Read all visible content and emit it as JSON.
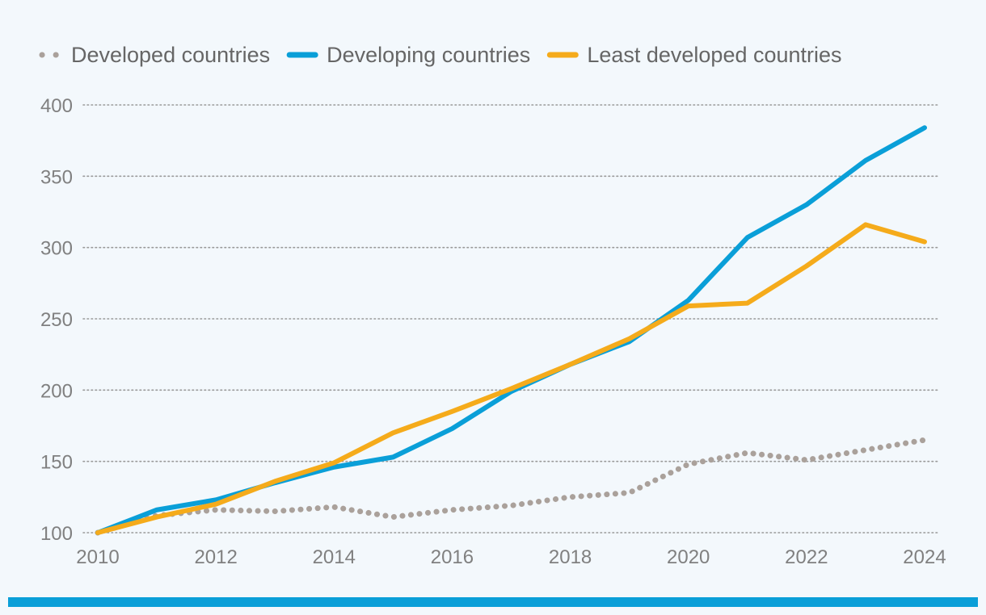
{
  "chart_data": {
    "type": "line",
    "title": "",
    "xlabel": "",
    "ylabel": "",
    "x": [
      2010,
      2011,
      2012,
      2013,
      2014,
      2015,
      2016,
      2017,
      2018,
      2019,
      2020,
      2021,
      2022,
      2023,
      2024
    ],
    "xticks": [
      2010,
      2012,
      2014,
      2016,
      2018,
      2020,
      2022,
      2024
    ],
    "xtick_labels": [
      "2010",
      "2012",
      "2014",
      "2016",
      "2018",
      "2020",
      "2022",
      "2024"
    ],
    "yticks": [
      100,
      150,
      200,
      250,
      300,
      350,
      400
    ],
    "ytick_labels": [
      "100",
      "150",
      "200",
      "250",
      "300",
      "350",
      "400"
    ],
    "xlim": [
      2010,
      2024
    ],
    "ylim": [
      100,
      400
    ],
    "grid": "horizontal dotted",
    "legend_position": "top-left",
    "series": [
      {
        "name": "Developed countries",
        "style": "dotted",
        "color": "#aaa19b",
        "values": [
          100,
          112,
          116,
          115,
          118,
          111,
          116,
          119,
          125,
          128,
          148,
          156,
          151,
          158,
          165
        ]
      },
      {
        "name": "Developing countries",
        "style": "solid",
        "color": "#0a9fd8",
        "values": [
          100,
          116,
          123,
          135,
          146,
          153,
          173,
          199,
          218,
          234,
          263,
          307,
          330,
          361,
          384
        ]
      },
      {
        "name": "Least developed countries",
        "style": "solid",
        "color": "#f5ab1b",
        "values": [
          100,
          111,
          120,
          136,
          149,
          170,
          185,
          201,
          218,
          236,
          259,
          261,
          287,
          316,
          304
        ]
      }
    ]
  },
  "colors": {
    "background": "#f3f8fc",
    "grid": "#9a9a9a",
    "bottom_bar": "#0a9fd8"
  }
}
